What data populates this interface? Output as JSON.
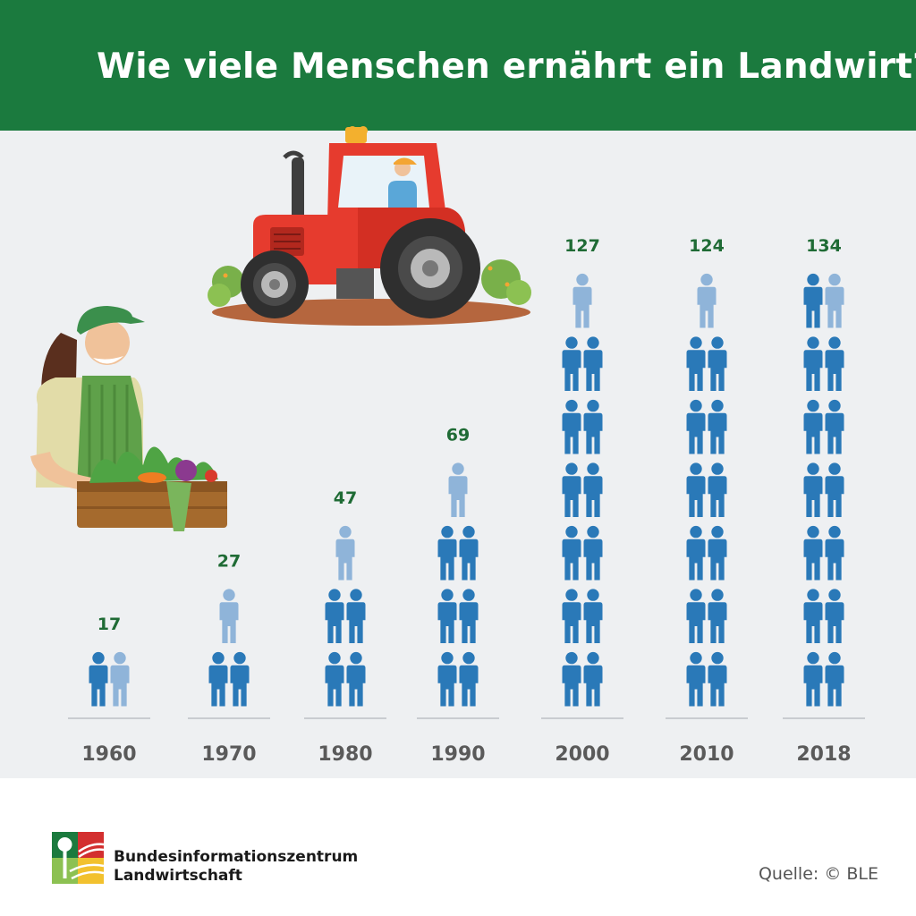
{
  "chart_data": {
    "type": "bar",
    "title": "Wie viele Menschen ernährt ein Landwirt?",
    "categories": [
      "1960",
      "1970",
      "1980",
      "1990",
      "2000",
      "2010",
      "2018"
    ],
    "values": [
      17,
      27,
      47,
      69,
      127,
      124,
      134
    ],
    "xlabel": "",
    "ylabel": "",
    "ylim": [
      0,
      140
    ],
    "grid": false,
    "people_per_icon": 10
  },
  "colors": {
    "header": "#1b7a3e",
    "value_label": "#1f6b35",
    "icon": "#2a79b8",
    "icon_light": "#8fb4d9",
    "panel": "#eef0f2",
    "year_label": "#5a5a5a"
  },
  "illustrations": [
    "tractor-illustration",
    "farmer-woman-illustration"
  ],
  "footer": {
    "org_line1": "Bundesinformationszentrum",
    "org_line2": "Landwirtschaft",
    "source": "Quelle: © BLE"
  }
}
